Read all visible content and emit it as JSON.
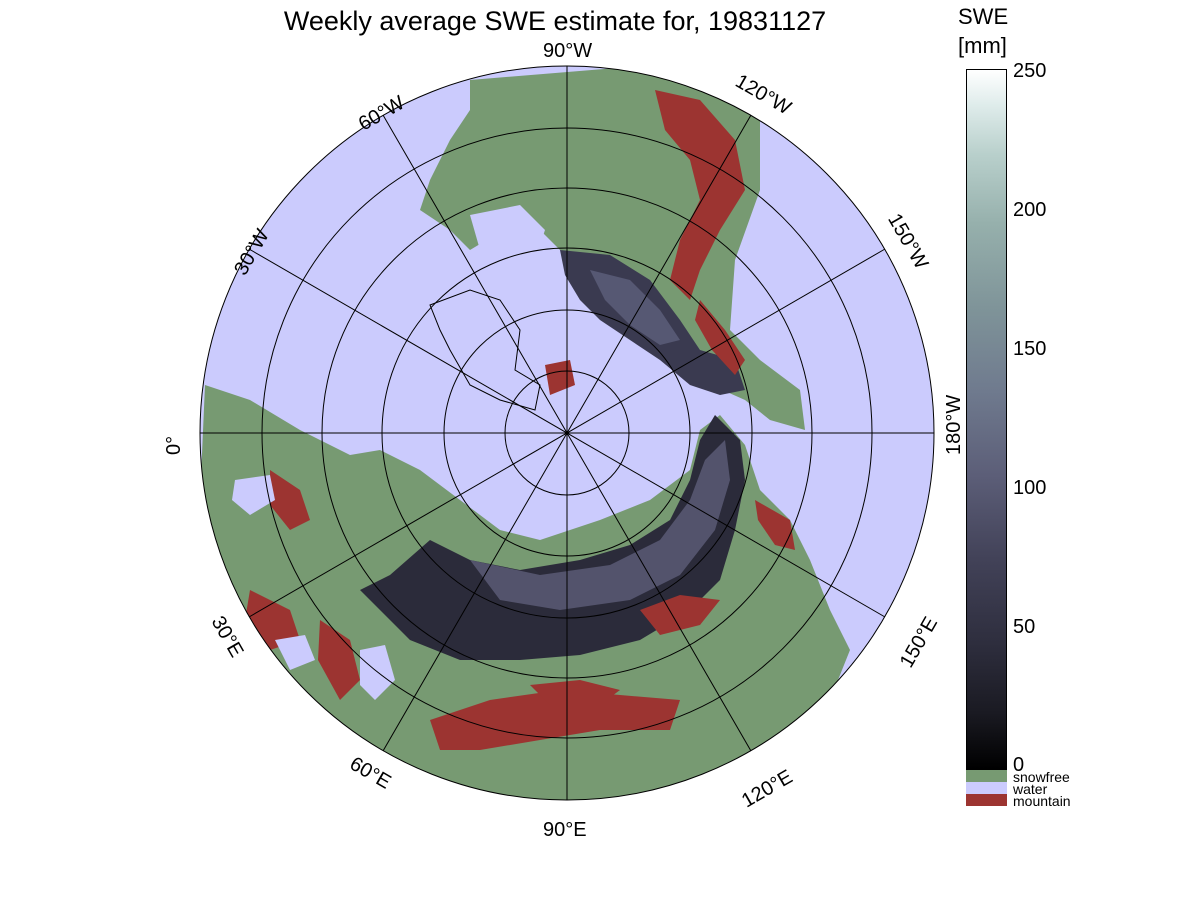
{
  "title": "Weekly average SWE estimate for, 19831127",
  "longitude_labels": {
    "w90": "90°W",
    "w60": "60°W",
    "w30": "30°W",
    "zero": "0°",
    "w120": "120°W",
    "w150": "150°W",
    "w180": "180°W",
    "e30": "30°E",
    "e60": "60°E",
    "e90": "90°E",
    "e120": "120°E",
    "e150": "150°E"
  },
  "colorbar": {
    "title_line1": "SWE",
    "title_line2": "[mm]",
    "ticks": [
      "250",
      "200",
      "150",
      "100",
      "50",
      "0"
    ],
    "range": [
      0,
      250
    ],
    "categories": [
      {
        "label": "snowfree",
        "color": "#779a72"
      },
      {
        "label": "water",
        "color": "#cbcbfd"
      },
      {
        "label": "mountain",
        "color": "#9c3431"
      }
    ]
  },
  "colors": {
    "water": "#cbcbfd",
    "land": "#779a72",
    "mountain": "#9c3431",
    "snow_low": "#1c1c26",
    "snow_mid": "#555670"
  }
}
